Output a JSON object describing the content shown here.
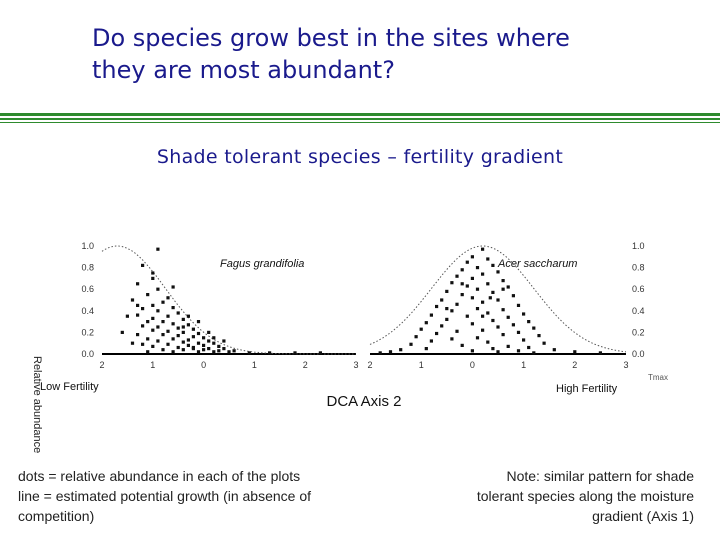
{
  "slide": {
    "title_line1": "Do species grow best in the sites where",
    "title_line2": "they are most abundant?",
    "subtitle": "Shade tolerant species – fertility gradient"
  },
  "notes": {
    "left": [
      "dots = relative abundance in each of the plots",
      "line  = estimated potential growth (in absence of",
      "competition)"
    ],
    "right": [
      "Note: similar pattern for shade",
      "tolerant species along the moisture",
      "gradient (Axis 1)"
    ]
  },
  "colors": {
    "title": "#1a1a8c",
    "rule": "#2e8b2e",
    "dots": "#111111",
    "curve": "#555555"
  },
  "chart_data": {
    "type": "scatter",
    "xlabel": "DCA Axis 2",
    "ylabel": "Relative abundance",
    "y_tick_labels": [
      "1.0",
      "0.8",
      "0.6",
      "0.4",
      "0.2",
      "0.0"
    ],
    "x_tick_labels": [
      "2",
      "1",
      "0",
      "1",
      "2",
      "3"
    ],
    "low_label": "Low Fertility",
    "high_label": "High Fertility",
    "right_axis_label": "Tmax",
    "ylim": [
      0,
      1
    ],
    "xlim": [
      -2,
      3
    ],
    "grid": false,
    "panels": [
      {
        "name": "Fagus grandifolia",
        "curve_peak_x": -1.7,
        "curve_sigma": 0.95,
        "points": [
          [
            -1.2,
            0.82
          ],
          [
            -1.0,
            0.75
          ],
          [
            -1.3,
            0.65
          ],
          [
            -0.9,
            0.6
          ],
          [
            -1.1,
            0.55
          ],
          [
            -0.7,
            0.52
          ],
          [
            -1.4,
            0.5
          ],
          [
            -0.8,
            0.48
          ],
          [
            -1.0,
            0.45
          ],
          [
            -0.6,
            0.43
          ],
          [
            -1.2,
            0.42
          ],
          [
            -0.9,
            0.4
          ],
          [
            -0.5,
            0.38
          ],
          [
            -1.3,
            0.36
          ],
          [
            -0.7,
            0.35
          ],
          [
            -1.0,
            0.33
          ],
          [
            -0.4,
            0.32
          ],
          [
            -1.1,
            0.3
          ],
          [
            -0.8,
            0.3
          ],
          [
            -0.6,
            0.28
          ],
          [
            -0.3,
            0.27
          ],
          [
            -1.2,
            0.26
          ],
          [
            -0.9,
            0.25
          ],
          [
            -0.5,
            0.24
          ],
          [
            -0.2,
            0.23
          ],
          [
            -1.0,
            0.22
          ],
          [
            -0.7,
            0.21
          ],
          [
            -0.4,
            0.2
          ],
          [
            -0.1,
            0.19
          ],
          [
            -1.3,
            0.18
          ],
          [
            -0.8,
            0.18
          ],
          [
            -0.5,
            0.17
          ],
          [
            -0.2,
            0.16
          ],
          [
            0.0,
            0.15
          ],
          [
            -1.1,
            0.14
          ],
          [
            -0.6,
            0.14
          ],
          [
            -0.3,
            0.13
          ],
          [
            0.1,
            0.12
          ],
          [
            -0.9,
            0.12
          ],
          [
            -0.4,
            0.11
          ],
          [
            -0.1,
            0.1
          ],
          [
            0.2,
            0.1
          ],
          [
            -1.2,
            0.09
          ],
          [
            -0.7,
            0.09
          ],
          [
            -0.3,
            0.08
          ],
          [
            0.0,
            0.08
          ],
          [
            0.3,
            0.07
          ],
          [
            -1.0,
            0.07
          ],
          [
            -0.5,
            0.06
          ],
          [
            -0.2,
            0.06
          ],
          [
            0.1,
            0.05
          ],
          [
            0.4,
            0.05
          ],
          [
            -0.8,
            0.04
          ],
          [
            -0.4,
            0.04
          ],
          [
            0.0,
            0.04
          ],
          [
            0.3,
            0.03
          ],
          [
            0.6,
            0.03
          ],
          [
            -1.1,
            0.02
          ],
          [
            -0.6,
            0.02
          ],
          [
            -0.1,
            0.02
          ],
          [
            0.2,
            0.02
          ],
          [
            0.5,
            0.02
          ],
          [
            0.9,
            0.01
          ],
          [
            1.3,
            0.01
          ],
          [
            1.8,
            0.01
          ],
          [
            2.3,
            0.01
          ],
          [
            -1.5,
            0.35
          ],
          [
            -1.6,
            0.2
          ],
          [
            -1.4,
            0.1
          ],
          [
            -0.3,
            0.35
          ],
          [
            -0.1,
            0.3
          ],
          [
            0.1,
            0.2
          ],
          [
            -0.9,
            0.97
          ],
          [
            -1.0,
            0.7
          ],
          [
            -0.6,
            0.62
          ],
          [
            -1.3,
            0.45
          ],
          [
            -0.4,
            0.25
          ],
          [
            0.2,
            0.15
          ],
          [
            -0.2,
            0.05
          ],
          [
            0.4,
            0.12
          ]
        ]
      },
      {
        "name": "Acer saccharum",
        "curve_peak_x": 0.2,
        "curve_sigma": 1.0,
        "points": [
          [
            0.2,
            0.97
          ],
          [
            0.0,
            0.9
          ],
          [
            0.3,
            0.88
          ],
          [
            -0.1,
            0.85
          ],
          [
            0.4,
            0.82
          ],
          [
            0.1,
            0.8
          ],
          [
            -0.2,
            0.78
          ],
          [
            0.5,
            0.76
          ],
          [
            0.2,
            0.74
          ],
          [
            -0.3,
            0.72
          ],
          [
            0.0,
            0.7
          ],
          [
            0.6,
            0.68
          ],
          [
            -0.4,
            0.66
          ],
          [
            0.3,
            0.65
          ],
          [
            -0.1,
            0.63
          ],
          [
            0.7,
            0.62
          ],
          [
            0.1,
            0.6
          ],
          [
            -0.5,
            0.58
          ],
          [
            0.4,
            0.57
          ],
          [
            -0.2,
            0.55
          ],
          [
            0.8,
            0.54
          ],
          [
            0.0,
            0.52
          ],
          [
            -0.6,
            0.5
          ],
          [
            0.5,
            0.5
          ],
          [
            0.2,
            0.48
          ],
          [
            -0.3,
            0.46
          ],
          [
            0.9,
            0.45
          ],
          [
            -0.7,
            0.44
          ],
          [
            0.1,
            0.42
          ],
          [
            0.6,
            0.41
          ],
          [
            -0.4,
            0.4
          ],
          [
            0.3,
            0.38
          ],
          [
            1.0,
            0.37
          ],
          [
            -0.8,
            0.36
          ],
          [
            -0.1,
            0.35
          ],
          [
            0.7,
            0.34
          ],
          [
            -0.5,
            0.32
          ],
          [
            0.4,
            0.31
          ],
          [
            1.1,
            0.3
          ],
          [
            -0.9,
            0.29
          ],
          [
            0.0,
            0.28
          ],
          [
            0.8,
            0.27
          ],
          [
            -0.6,
            0.26
          ],
          [
            0.5,
            0.25
          ],
          [
            1.2,
            0.24
          ],
          [
            -1.0,
            0.23
          ],
          [
            0.2,
            0.22
          ],
          [
            -0.3,
            0.21
          ],
          [
            0.9,
            0.2
          ],
          [
            -0.7,
            0.19
          ],
          [
            0.6,
            0.18
          ],
          [
            1.3,
            0.17
          ],
          [
            -1.1,
            0.16
          ],
          [
            0.1,
            0.15
          ],
          [
            -0.4,
            0.14
          ],
          [
            1.0,
            0.13
          ],
          [
            -0.8,
            0.12
          ],
          [
            0.3,
            0.11
          ],
          [
            1.4,
            0.1
          ],
          [
            -1.2,
            0.09
          ],
          [
            -0.2,
            0.08
          ],
          [
            0.7,
            0.07
          ],
          [
            1.1,
            0.06
          ],
          [
            -0.9,
            0.05
          ],
          [
            0.4,
            0.05
          ],
          [
            1.6,
            0.04
          ],
          [
            -1.4,
            0.04
          ],
          [
            0.0,
            0.03
          ],
          [
            0.9,
            0.03
          ],
          [
            2.0,
            0.02
          ],
          [
            -1.6,
            0.02
          ],
          [
            0.5,
            0.02
          ],
          [
            2.5,
            0.01
          ],
          [
            -1.8,
            0.01
          ],
          [
            1.2,
            0.01
          ],
          [
            -0.5,
            0.42
          ],
          [
            0.6,
            0.6
          ],
          [
            0.2,
            0.35
          ],
          [
            -0.2,
            0.65
          ],
          [
            0.35,
            0.52
          ]
        ]
      }
    ]
  }
}
